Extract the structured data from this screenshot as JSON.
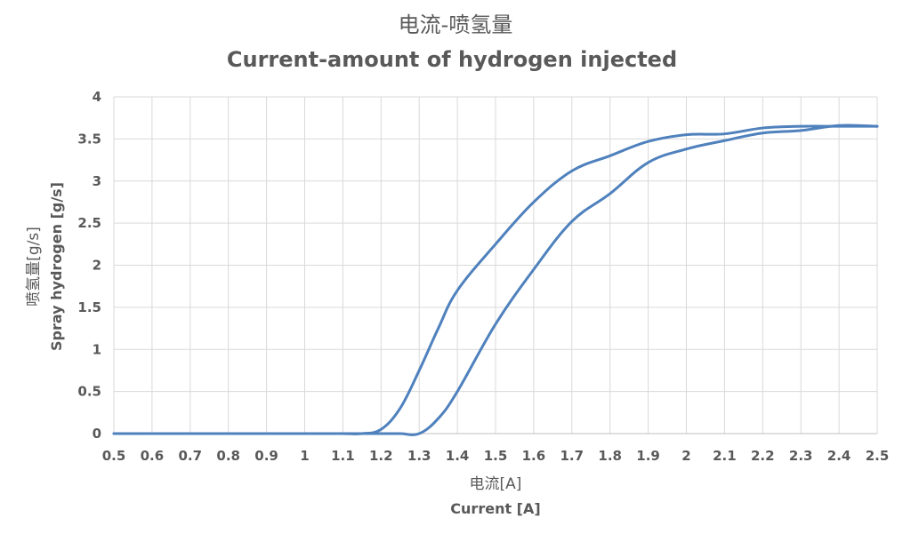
{
  "chart_data": {
    "type": "line",
    "title": "电流-喷氢量",
    "subtitle": "Current-amount of hydrogen injected",
    "xlabel_cn": "电流[A]",
    "xlabel": "Current [A]",
    "ylabel_cn": "喷氢量[g/s]",
    "ylabel": "Spray hydrogen [g/s]",
    "xlim": [
      0.5,
      2.5
    ],
    "ylim": [
      0,
      4
    ],
    "x_ticks": [
      "0.5",
      "0.6",
      "0.7",
      "0.8",
      "0.9",
      "1",
      "1.1",
      "1.2",
      "1.3",
      "1.4",
      "1.5",
      "1.6",
      "1.7",
      "1.8",
      "1.9",
      "2",
      "2.1",
      "2.2",
      "2.3",
      "2.4",
      "2.5"
    ],
    "y_ticks": [
      "0",
      "0.5",
      "1",
      "1.5",
      "2",
      "2.5",
      "3",
      "3.5",
      "4"
    ],
    "grid": true,
    "series": [
      {
        "color": "#4f81bd",
        "x": [
          0.5,
          0.6,
          0.7,
          0.8,
          0.9,
          1.0,
          1.1,
          1.15,
          1.2,
          1.25,
          1.3,
          1.35,
          1.4,
          1.5,
          1.6,
          1.7,
          1.8,
          1.9,
          2.0,
          2.1,
          2.2,
          2.3,
          2.4,
          2.5
        ],
        "y": [
          0,
          0,
          0,
          0,
          0,
          0,
          0,
          0,
          0.05,
          0.3,
          0.75,
          1.25,
          1.7,
          2.25,
          2.75,
          3.12,
          3.3,
          3.47,
          3.55,
          3.56,
          3.63,
          3.65,
          3.65,
          3.65
        ]
      },
      {
        "color": "#4f81bd",
        "x": [
          0.5,
          0.6,
          0.7,
          0.8,
          0.9,
          1.0,
          1.1,
          1.2,
          1.25,
          1.3,
          1.35,
          1.4,
          1.5,
          1.6,
          1.7,
          1.8,
          1.9,
          2.0,
          2.1,
          2.2,
          2.3,
          2.4,
          2.5
        ],
        "y": [
          0,
          0,
          0,
          0,
          0,
          0,
          0,
          0,
          0,
          0,
          0.18,
          0.5,
          1.3,
          1.95,
          2.52,
          2.85,
          3.22,
          3.38,
          3.48,
          3.57,
          3.6,
          3.66,
          3.65
        ]
      }
    ]
  }
}
